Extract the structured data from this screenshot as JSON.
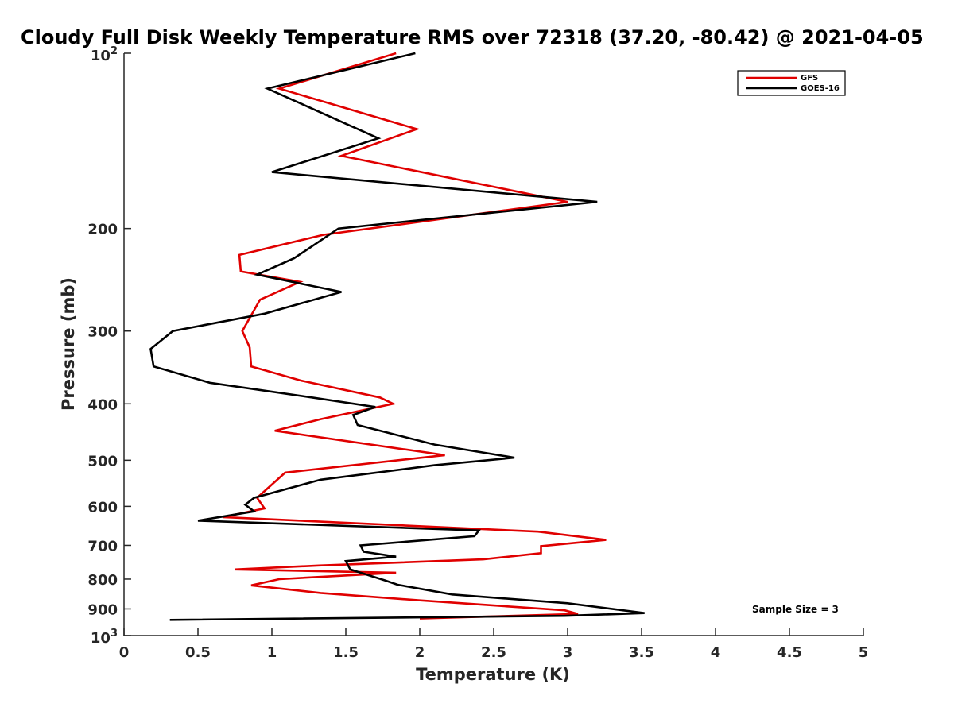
{
  "chart_data": {
    "type": "line",
    "title": "Cloudy Full Disk Weekly Temperature RMS over 72318 (37.20, -80.42) @ 2021-04-05",
    "xlabel": "Temperature (K)",
    "ylabel": "Pressure (mb)",
    "xlim": [
      0,
      5
    ],
    "ylim": [
      100,
      1000
    ],
    "yscale": "log",
    "y_reversed": true,
    "x_ticks": [
      0,
      0.5,
      1,
      1.5,
      2,
      2.5,
      3,
      3.5,
      4,
      4.5,
      5
    ],
    "x_tick_labels": [
      "0",
      "0.5",
      "1",
      "1.5",
      "2",
      "2.5",
      "3",
      "3.5",
      "4",
      "4.5",
      "5"
    ],
    "y_ticks": [
      {
        "value": 100,
        "base": "10",
        "exp": "2"
      },
      {
        "value": 200,
        "label": "200"
      },
      {
        "value": 300,
        "label": "300"
      },
      {
        "value": 400,
        "label": "400"
      },
      {
        "value": 500,
        "label": "500"
      },
      {
        "value": 600,
        "label": "600"
      },
      {
        "value": 700,
        "label": "700"
      },
      {
        "value": 800,
        "label": "800"
      },
      {
        "value": 900,
        "label": "900"
      },
      {
        "value": 1000,
        "base": "10",
        "exp": "3"
      }
    ],
    "legend_position": "top-right",
    "annotation": "Sample Size = 3",
    "series": [
      {
        "name": "GFS",
        "color": "#e00000",
        "points": [
          [
            1.84,
            100
          ],
          [
            1.05,
            115
          ],
          [
            1.98,
            135
          ],
          [
            1.47,
            150
          ],
          [
            3.0,
            180
          ],
          [
            1.35,
            205
          ],
          [
            0.78,
            222
          ],
          [
            0.79,
            237
          ],
          [
            1.19,
            247
          ],
          [
            0.92,
            265
          ],
          [
            0.8,
            300
          ],
          [
            0.85,
            320
          ],
          [
            0.86,
            345
          ],
          [
            1.2,
            365
          ],
          [
            1.73,
            390
          ],
          [
            1.82,
            400
          ],
          [
            1.33,
            425
          ],
          [
            1.02,
            445
          ],
          [
            2.17,
            490
          ],
          [
            1.09,
            525
          ],
          [
            0.9,
            580
          ],
          [
            0.95,
            605
          ],
          [
            0.67,
            626
          ],
          [
            2.8,
            663
          ],
          [
            3.26,
            685
          ],
          [
            2.82,
            702
          ],
          [
            2.82,
            722
          ],
          [
            2.43,
            740
          ],
          [
            1.32,
            758
          ],
          [
            0.75,
            770
          ],
          [
            1.84,
            780
          ],
          [
            1.05,
            800
          ],
          [
            0.86,
            820
          ],
          [
            1.33,
            845
          ],
          [
            2.0,
            870
          ],
          [
            2.98,
            905
          ],
          [
            3.07,
            918
          ],
          [
            2.0,
            935
          ]
        ]
      },
      {
        "name": "GOES-16",
        "color": "#000000",
        "points": [
          [
            1.97,
            100
          ],
          [
            0.97,
            115
          ],
          [
            1.72,
            140
          ],
          [
            1.0,
            160
          ],
          [
            3.2,
            180
          ],
          [
            1.45,
            200
          ],
          [
            1.15,
            225
          ],
          [
            0.9,
            240
          ],
          [
            1.47,
            257
          ],
          [
            0.95,
            280
          ],
          [
            0.33,
            300
          ],
          [
            0.18,
            322
          ],
          [
            0.2,
            345
          ],
          [
            0.58,
            368
          ],
          [
            1.27,
            390
          ],
          [
            1.7,
            405
          ],
          [
            1.55,
            418
          ],
          [
            1.58,
            435
          ],
          [
            2.1,
            470
          ],
          [
            2.64,
            495
          ],
          [
            2.1,
            510
          ],
          [
            1.33,
            540
          ],
          [
            0.88,
            580
          ],
          [
            0.82,
            596
          ],
          [
            0.88,
            612
          ],
          [
            0.5,
            635
          ],
          [
            2.4,
            660
          ],
          [
            2.37,
            675
          ],
          [
            1.6,
            700
          ],
          [
            1.62,
            718
          ],
          [
            1.84,
            732
          ],
          [
            1.5,
            745
          ],
          [
            1.53,
            770
          ],
          [
            1.77,
            805
          ],
          [
            1.85,
            818
          ],
          [
            2.22,
            850
          ],
          [
            3.0,
            880
          ],
          [
            3.52,
            915
          ],
          [
            2.98,
            925
          ],
          [
            0.31,
            940
          ]
        ]
      }
    ]
  }
}
